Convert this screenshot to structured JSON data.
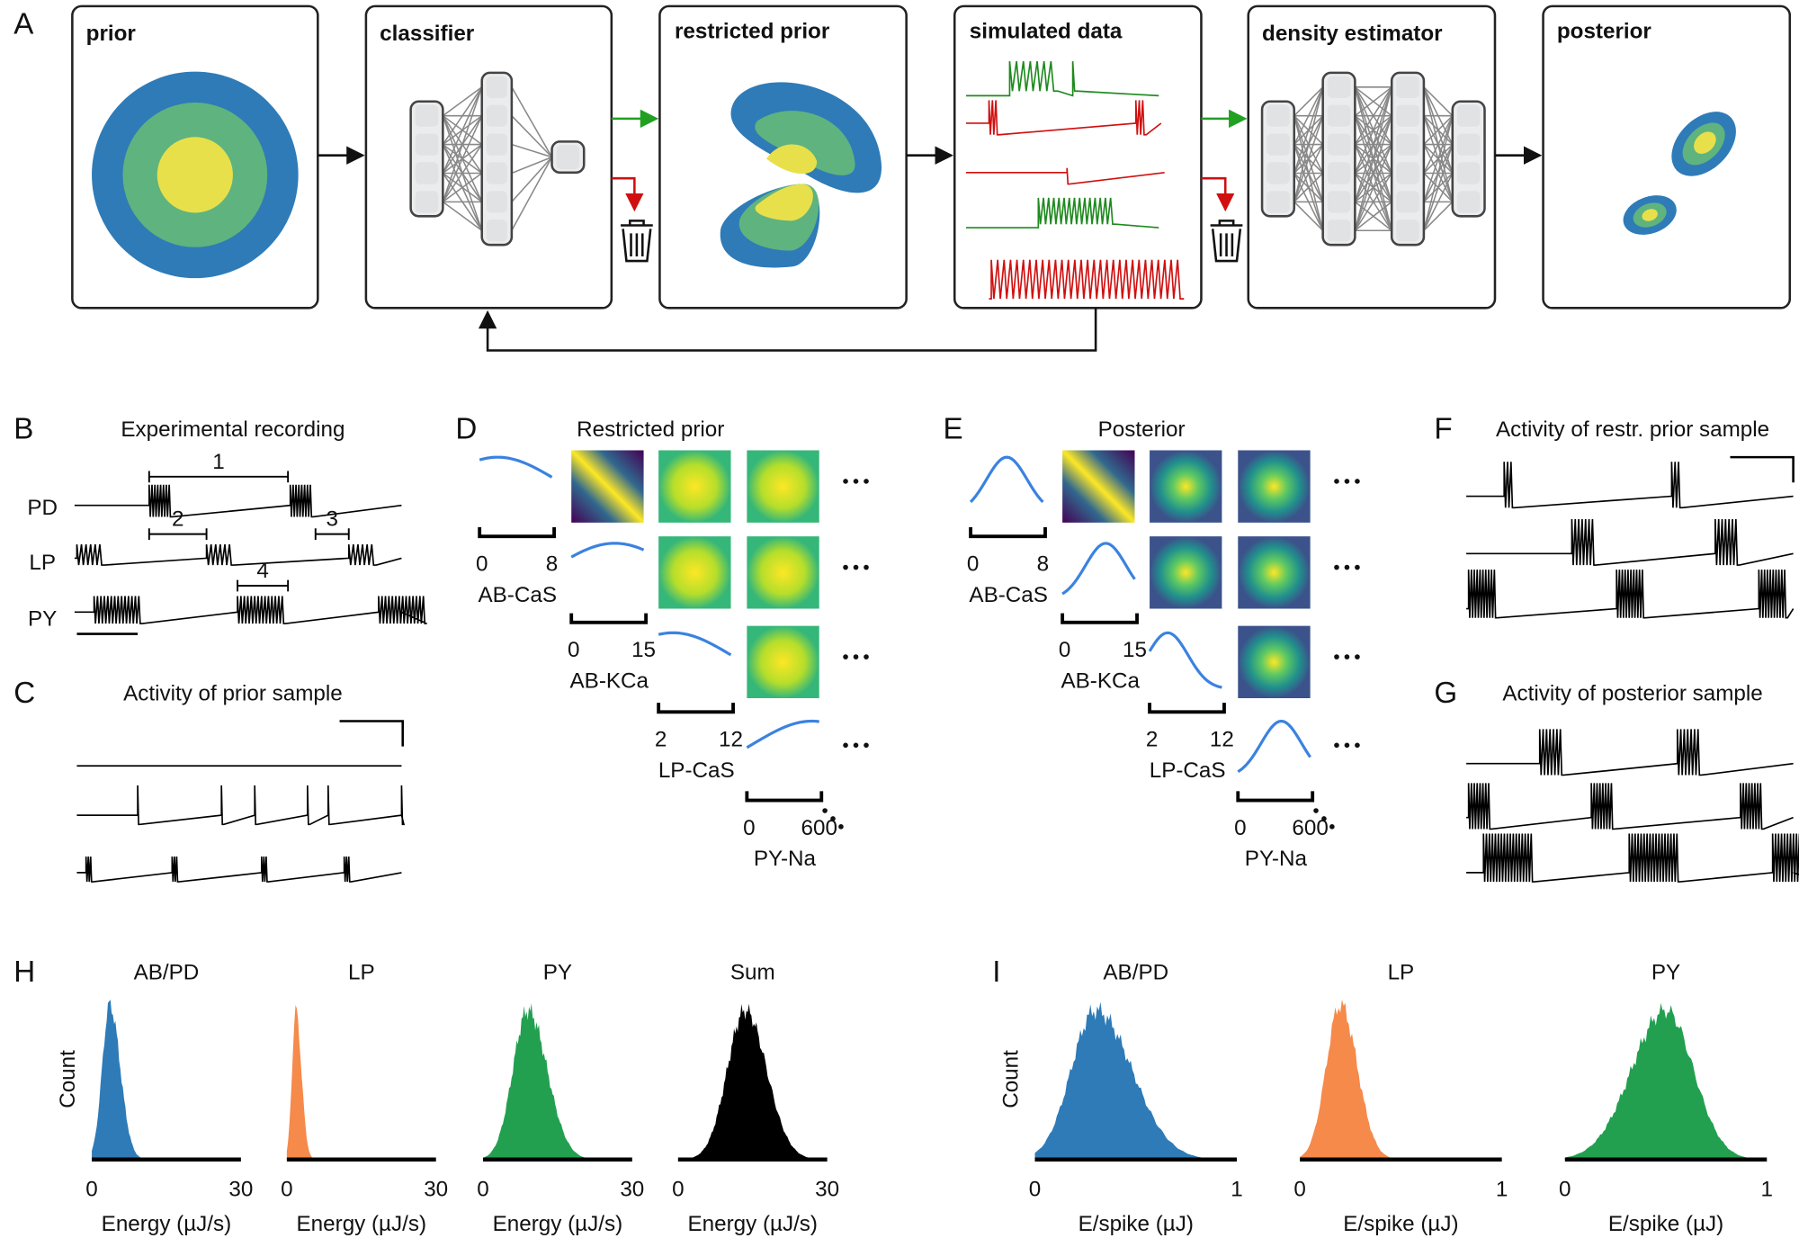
{
  "panel_labels": [
    "A",
    "B",
    "C",
    "D",
    "E",
    "F",
    "G",
    "H",
    "I"
  ],
  "pipeline": {
    "boxes": [
      "prior",
      "classifier",
      "restricted prior",
      "simulated data",
      "density estimator",
      "posterior"
    ]
  },
  "B": {
    "title": "Experimental recording",
    "neurons": [
      "PD",
      "LP",
      "PY"
    ],
    "intervals": [
      "1",
      "2",
      "3",
      "4"
    ]
  },
  "C": {
    "title": "Activity of prior sample"
  },
  "D": {
    "title": "Restricted prior",
    "params": [
      "AB-CaS",
      "AB-KCa",
      "LP-CaS",
      "PY-Na"
    ],
    "ticks": [
      [
        0,
        8
      ],
      [
        0,
        15
      ],
      [
        2,
        12
      ],
      [
        0,
        600
      ]
    ]
  },
  "E": {
    "title": "Posterior",
    "params": [
      "AB-CaS",
      "AB-KCa",
      "LP-CaS",
      "PY-Na"
    ],
    "ticks": [
      [
        0,
        8
      ],
      [
        0,
        15
      ],
      [
        2,
        12
      ],
      [
        0,
        600
      ]
    ]
  },
  "F": {
    "title": "Activity of restr. prior sample"
  },
  "G": {
    "title": "Activity of posterior sample"
  },
  "H": {
    "ylabel": "Count",
    "panels": [
      {
        "title": "AB/PD",
        "xlabel": "Energy (µJ/s)",
        "ticks": [
          0,
          30
        ]
      },
      {
        "title": "LP",
        "xlabel": "Energy (µJ/s)",
        "ticks": [
          0,
          30
        ]
      },
      {
        "title": "PY",
        "xlabel": "Energy (µJ/s)",
        "ticks": [
          0,
          30
        ]
      },
      {
        "title": "Sum",
        "xlabel": "Energy (µJ/s)",
        "ticks": [
          0,
          30
        ]
      }
    ]
  },
  "I": {
    "ylabel": "Count",
    "panels": [
      {
        "title": "AB/PD",
        "xlabel": "E/spike (µJ)",
        "ticks": [
          0,
          1
        ]
      },
      {
        "title": "LP",
        "xlabel": "E/spike (µJ)",
        "ticks": [
          0,
          1
        ]
      },
      {
        "title": "PY",
        "xlabel": "E/spike (µJ)",
        "ticks": [
          0,
          1
        ]
      }
    ]
  }
}
